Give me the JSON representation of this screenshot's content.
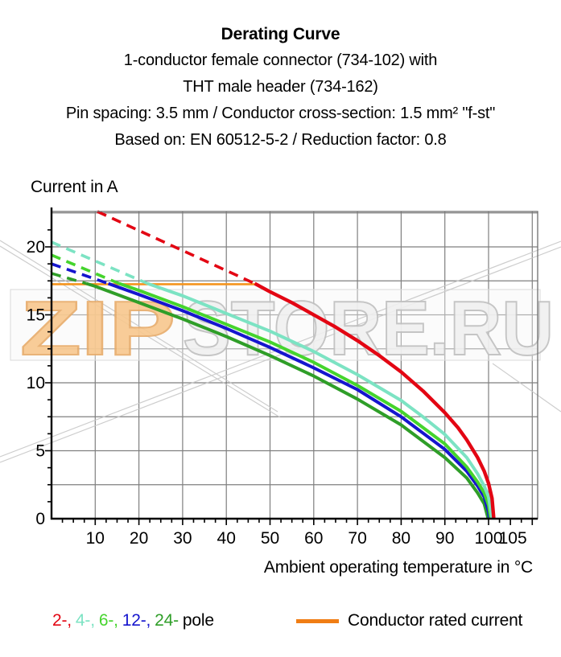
{
  "header": {
    "title": "Derating Curve",
    "subtitle_lines": [
      "1-conductor female connector (734-102) with",
      "THT male header (734-162)",
      "Pin spacing: 3.5 mm / Conductor cross-section: 1.5 mm² \"f-st\"",
      "Based on: EN 60512-5-2 / Reduction factor: 0.8"
    ]
  },
  "chart_data": {
    "type": "line",
    "title": "",
    "ylabel": "Current in A",
    "xlabel": "Ambient operating temperature in °C",
    "xlim": [
      0,
      111.3
    ],
    "ylim": [
      0,
      22.6
    ],
    "grid": true,
    "grid_color": "#7F7F7F",
    "border_color": "#6E6E6E",
    "axis_color": "#000000",
    "x_tick_labels": [
      10,
      20,
      30,
      40,
      50,
      60,
      70,
      80,
      90,
      100,
      105
    ],
    "y_tick_labels": [
      0,
      5,
      10,
      15,
      20
    ],
    "x_gridlines": [
      10,
      20,
      30,
      40,
      50,
      60,
      70,
      80,
      90,
      100,
      110
    ],
    "y_gridlines": [
      2.5,
      5,
      7.5,
      10,
      12.5,
      15,
      17.5,
      20,
      22.5
    ],
    "rated_current_line": {
      "value": 17.25,
      "x_from": 0,
      "x_to": 46.5,
      "color": "#F5941D",
      "label": "Conductor rated current"
    },
    "series": [
      {
        "name": "2-pole",
        "color": "#E30613",
        "rated": 17.3,
        "dash_from": [
          10.5,
          22.6
        ],
        "solid_start": 46.5,
        "t_end": 101.2,
        "width": 4.4,
        "points": [
          [
            46.5,
            17.3
          ],
          [
            50,
            16.7
          ],
          [
            55,
            15.9
          ],
          [
            60,
            15.0
          ],
          [
            65,
            14.1
          ],
          [
            70,
            13.1
          ],
          [
            75,
            12.0
          ],
          [
            80,
            10.8
          ],
          [
            85,
            9.4
          ],
          [
            90,
            7.8
          ],
          [
            93,
            6.7
          ],
          [
            95,
            5.8
          ],
          [
            97.5,
            4.5
          ],
          [
            99,
            3.5
          ],
          [
            100,
            2.6
          ],
          [
            100.8,
            1.5
          ],
          [
            101.2,
            0
          ]
        ]
      },
      {
        "name": "4-pole",
        "color": "#7CE3C3",
        "rated": 17.3,
        "dash_from": [
          0,
          20.35
        ],
        "solid_start": 22,
        "t_end": 100.8,
        "width": 4,
        "points": [
          [
            22,
            17.3
          ],
          [
            30,
            16.4
          ],
          [
            40,
            15.1
          ],
          [
            50,
            13.8
          ],
          [
            60,
            12.3
          ],
          [
            70,
            10.6
          ],
          [
            80,
            8.7
          ],
          [
            85,
            7.5
          ],
          [
            90,
            6.2
          ],
          [
            95,
            4.5
          ],
          [
            97.5,
            3.3
          ],
          [
            99,
            2.4
          ],
          [
            100,
            1.6
          ],
          [
            100.8,
            0
          ]
        ]
      },
      {
        "name": "6-pole",
        "color": "#45D42D",
        "rated": 17.3,
        "dash_from": [
          0,
          19.4
        ],
        "solid_start": 15.5,
        "t_end": 100.5,
        "width": 4,
        "points": [
          [
            15.5,
            17.3
          ],
          [
            20,
            16.8
          ],
          [
            30,
            15.6
          ],
          [
            40,
            14.3
          ],
          [
            50,
            13.0
          ],
          [
            60,
            11.5
          ],
          [
            70,
            9.8
          ],
          [
            80,
            7.9
          ],
          [
            90,
            5.5
          ],
          [
            95,
            3.8
          ],
          [
            97.5,
            2.7
          ],
          [
            99,
            1.9
          ],
          [
            100,
            1.0
          ],
          [
            100.5,
            0
          ]
        ]
      },
      {
        "name": "12-pole",
        "color": "#1515CE",
        "rated": 17.3,
        "dash_from": [
          0,
          18.75
        ],
        "solid_start": 13,
        "t_end": 100.2,
        "width": 4,
        "points": [
          [
            13,
            17.3
          ],
          [
            20,
            16.5
          ],
          [
            30,
            15.3
          ],
          [
            40,
            14.0
          ],
          [
            50,
            12.6
          ],
          [
            60,
            11.1
          ],
          [
            70,
            9.5
          ],
          [
            80,
            7.5
          ],
          [
            90,
            5.1
          ],
          [
            95,
            3.5
          ],
          [
            97.5,
            2.4
          ],
          [
            99,
            1.6
          ],
          [
            100,
            0.5
          ],
          [
            100.2,
            0
          ]
        ]
      },
      {
        "name": "24-pole",
        "color": "#2F9E28",
        "rated": 17.3,
        "dash_from": [
          0,
          18.05
        ],
        "solid_start": 8,
        "t_end": 99.9,
        "width": 4,
        "points": [
          [
            8,
            17.3
          ],
          [
            10,
            17.1
          ],
          [
            20,
            15.9
          ],
          [
            30,
            14.7
          ],
          [
            40,
            13.4
          ],
          [
            50,
            12.0
          ],
          [
            60,
            10.5
          ],
          [
            70,
            8.8
          ],
          [
            80,
            6.9
          ],
          [
            90,
            4.5
          ],
          [
            95,
            3.0
          ],
          [
            97.5,
            1.9
          ],
          [
            99,
            1.1
          ],
          [
            99.9,
            0
          ]
        ]
      }
    ]
  },
  "legend": {
    "pole_items": [
      {
        "text": "2-,",
        "color": "#E30613"
      },
      {
        "text": "4-,",
        "color": "#7CE3C3"
      },
      {
        "text": "6-,",
        "color": "#45D42D"
      },
      {
        "text": "12-,",
        "color": "#1515CE"
      },
      {
        "text": "24-",
        "color": "#2F9E28"
      }
    ],
    "pole_suffix": "pole",
    "rated_label": "Conductor rated current",
    "rated_color": "#F07D14"
  },
  "watermark": {
    "text_left": "ZIP",
    "text_right": "STORE.RU",
    "left_fill": "#F8C88E",
    "left_stroke": "#E8AC6A",
    "right_fill": "#F0F0F0",
    "right_stroke": "#C0C0C0",
    "box_stroke": "#D8D8D8",
    "box_fill": "#F5F5F5",
    "line_color": "#C8C8C8"
  }
}
